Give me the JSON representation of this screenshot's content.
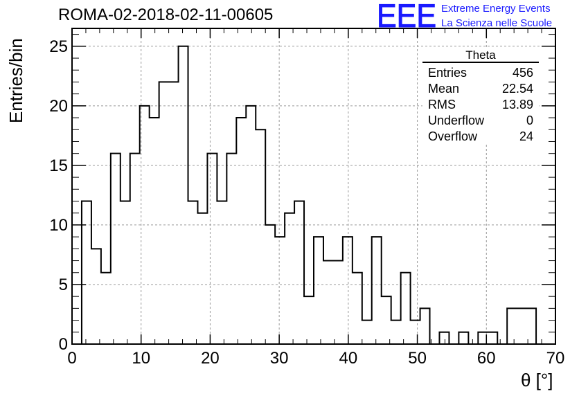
{
  "title": "ROMA-02-2018-02-11-00605",
  "logo": {
    "letters": "EEE",
    "line1": "Extreme Energy Events",
    "line2": "La Scienza nelle Scuole",
    "color": "#1a1aff"
  },
  "stats_box": {
    "name": "Theta",
    "rows": [
      {
        "label": "Entries",
        "value": "456"
      },
      {
        "label": "Mean",
        "value": "22.54"
      },
      {
        "label": "RMS",
        "value": "13.89"
      },
      {
        "label": "Underflow",
        "value": "0"
      },
      {
        "label": "Overflow",
        "value": "24"
      }
    ]
  },
  "chart_data": {
    "type": "bar",
    "style": "step-histogram",
    "xlabel": "θ [°]",
    "ylabel": "Entries/bin",
    "xlim": [
      0,
      70
    ],
    "ylim": [
      0,
      26.5
    ],
    "x_ticks": [
      "0",
      "10",
      "20",
      "30",
      "40",
      "50",
      "60",
      "70"
    ],
    "y_ticks": [
      "0",
      "5",
      "10",
      "15",
      "20",
      "25"
    ],
    "grid": true,
    "line_color": "#000000",
    "bin_edges": [
      1.4,
      2.8,
      4.2,
      5.6,
      7.0,
      8.4,
      9.8,
      11.2,
      12.6,
      15.4,
      16.8,
      18.2,
      19.6,
      21.0,
      22.4,
      23.8,
      25.2,
      26.6,
      28.0,
      29.4,
      30.8,
      32.2,
      33.6,
      35.0,
      36.4,
      37.8,
      39.2,
      40.6,
      42.0,
      43.4,
      44.8,
      46.2,
      47.6,
      49.0,
      50.4,
      51.8,
      53.2,
      54.6,
      56.0,
      57.4,
      58.8,
      61.6,
      63.0,
      67.2
    ],
    "counts": [
      12,
      8,
      6,
      16,
      12,
      16,
      20,
      19,
      22,
      25,
      12,
      11,
      16,
      12,
      16,
      19,
      20,
      18,
      10,
      9,
      11,
      12,
      4,
      9,
      7,
      7,
      9,
      6,
      2,
      9,
      4,
      2,
      6,
      2,
      3,
      0,
      1,
      0,
      1,
      0,
      1,
      0,
      3
    ]
  }
}
